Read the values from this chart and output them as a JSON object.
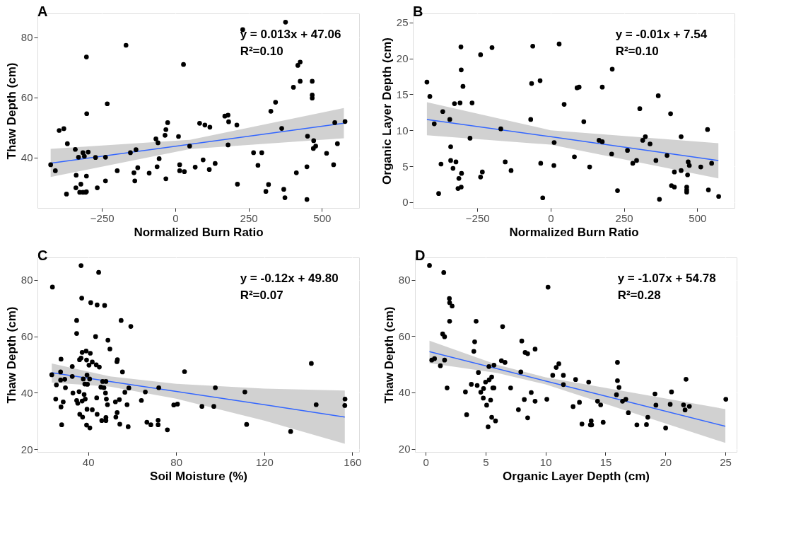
{
  "chart_data": [
    {
      "type": "scatter",
      "title": "A",
      "xlabel": "Normalized Burn Ratio",
      "ylabel": "Thaw Depth (cm)",
      "xlim": [
        -470,
        627
      ],
      "ylim": [
        23.2,
        88
      ],
      "xticks": [
        -250,
        0,
        250,
        500
      ],
      "yticks": [
        40,
        60,
        80
      ],
      "grid": true,
      "annotations": [
        "y = 0.013x + 47.06",
        "R²=0.10"
      ],
      "series": [
        {
          "marker": "circle",
          "color": "#000000",
          "x": [
            -425,
            -409,
            -396,
            -380,
            -371,
            -368,
            -341,
            -338,
            -339,
            -330,
            -322,
            -326,
            -315,
            -315,
            -310,
            -306,
            -303,
            -303,
            -302,
            -303,
            -297,
            -272,
            -266,
            -238,
            -238,
            -232,
            -198,
            -168,
            -153,
            -141,
            -138,
            -134,
            -128,
            -89,
            -66,
            -62,
            -59,
            -55,
            -35,
            -32,
            -32,
            -26,
            11,
            15,
            15,
            28,
            31,
            49,
            68,
            83,
            95,
            101,
            116,
            118,
            136,
            169,
            180,
            182,
            180,
            210,
            212,
            230,
            267,
            282,
            295,
            309,
            318,
            326,
            342,
            363,
            370,
            374,
            376,
            403,
            413,
            418,
            426,
            426,
            449,
            449,
            451,
            467,
            467,
            467,
            472,
            471,
            479,
            516,
            540,
            544,
            553,
            579
          ],
          "values": [
            37.6,
            35.6,
            49.0,
            49.6,
            27.8,
            44.6,
            42.7,
            34.1,
            29.9,
            40.1,
            31.1,
            28.4,
            41.6,
            28.4,
            40.4,
            28.4,
            28.6,
            73.5,
            54.6,
            33.8,
            41.8,
            40.0,
            29.9,
            40.1,
            32.2,
            57.9,
            35.6,
            77.4,
            41.6,
            34.9,
            32.2,
            42.6,
            36.6,
            34.8,
            46.2,
            36.9,
            44.9,
            39.6,
            47.4,
            49.3,
            32.9,
            51.6,
            47.0,
            37.6,
            35.6,
            71.0,
            35.3,
            43.8,
            36.8,
            51.4,
            39.2,
            50.8,
            36.0,
            50.1,
            38.0,
            53.8,
            54.1,
            51.9,
            44.2,
            50.8,
            31.1,
            82.6,
            41.6,
            37.4,
            41.6,
            28.7,
            31.0,
            55.4,
            58.4,
            49.7,
            29.4,
            26.6,
            85.1,
            63.4,
            34.9,
            70.7,
            71.8,
            65.4,
            36.9,
            26.0,
            47.1,
            65.4,
            60.8,
            59.8,
            45.6,
            43.0,
            43.8,
            41.4,
            37.6,
            51.6,
            44.6,
            52.0
          ]
        },
        {
          "type": "line",
          "color": "#3366ff",
          "x": [
            -425,
            50,
            575
          ],
          "values": [
            38.1,
            44.4,
            51.4
          ],
          "lower": [
            33.5,
            42.8,
            46.4
          ],
          "upper": [
            42.9,
            45.9,
            56.5
          ]
        }
      ]
    },
    {
      "type": "scatter",
      "title": "B",
      "xlabel": "Normalized Burn Ratio",
      "ylabel": "Organic Layer Depth (cm)",
      "xlim": [
        -470,
        627
      ],
      "ylim": [
        -0.8,
        26.25
      ],
      "xticks": [
        -250,
        0,
        250,
        500
      ],
      "yticks": [
        0,
        5,
        10,
        15,
        20,
        25
      ],
      "grid": true,
      "annotations": [
        "y = -0.01x + 7.54",
        "R²=0.10"
      ],
      "series": [
        {
          "marker": "circle",
          "color": "#000000",
          "x": [
            -422,
            -412,
            -397,
            -382,
            -374,
            -368,
            -344,
            -341,
            -341,
            -333,
            -328,
            -323,
            -316,
            -313,
            -309,
            -306,
            -305,
            -305,
            -304,
            -299,
            -275,
            -268,
            -239,
            -239,
            -233,
            -200,
            -170,
            -155,
            -135,
            -68,
            -65,
            -61,
            -36,
            -34,
            -27,
            11,
            12,
            29,
            46,
            81,
            90,
            97,
            113,
            133,
            165,
            176,
            176,
            208,
            210,
            228,
            262,
            280,
            293,
            304,
            314,
            323,
            339,
            359,
            367,
            371,
            397,
            409,
            412,
            422,
            422,
            445,
            445,
            464,
            464,
            464,
            467,
            469,
            473,
            512,
            535,
            538,
            549,
            573
          ],
          "values": [
            16.7,
            14.7,
            10.9,
            1.2,
            5.3,
            12.6,
            11.5,
            7.7,
            5.8,
            4.7,
            13.7,
            5.6,
            1.9,
            3.3,
            13.8,
            21.6,
            18.4,
            2.1,
            4.0,
            16.1,
            8.9,
            13.8,
            20.5,
            3.5,
            4.2,
            21.5,
            10.2,
            5.6,
            4.4,
            11.5,
            16.5,
            21.7,
            16.9,
            5.4,
            0.6,
            5.1,
            8.3,
            22.0,
            13.6,
            6.3,
            15.9,
            16.0,
            11.2,
            4.9,
            8.6,
            16.0,
            8.4,
            6.7,
            18.5,
            1.6,
            7.2,
            5.4,
            5.8,
            13.0,
            8.6,
            9.1,
            8.1,
            5.8,
            14.8,
            0.4,
            6.5,
            12.3,
            2.3,
            4.2,
            2.1,
            9.1,
            4.4,
            2.1,
            1.7,
            1.4,
            3.8,
            5.6,
            5.1,
            4.9,
            10.1,
            1.7,
            5.4,
            0.8
          ]
        },
        {
          "type": "line",
          "color": "#3366ff",
          "x": [
            -422,
            0,
            572
          ],
          "values": [
            11.5,
            9.1,
            5.8
          ],
          "lower": [
            9.3,
            8.0,
            3.3
          ],
          "upper": [
            13.9,
            10.0,
            8.2
          ]
        }
      ]
    },
    {
      "type": "scatter",
      "title": "C",
      "xlabel": "Soil Moisture (%)",
      "ylabel": "Thaw Depth (cm)",
      "xlim": [
        17,
        163.1
      ],
      "ylim": [
        19.1,
        87.9
      ],
      "xticks": [
        40,
        80,
        120,
        160
      ],
      "yticks": [
        20,
        40,
        60,
        80
      ],
      "grid": true,
      "annotations": [
        "y = -0.12x + 49.80",
        "R²=0.07"
      ],
      "series": [
        {
          "marker": "circle",
          "color": "#000000",
          "x": [
            23.5,
            23.8,
            25.6,
            25.3,
            27.5,
            27.7,
            27.5,
            27.7,
            28.0,
            28.7,
            29.4,
            29.7,
            32.8,
            32.8,
            33.1,
            34.8,
            34.8,
            34.8,
            35.3,
            35.9,
            36.2,
            36.1,
            36.8,
            36.8,
            37.1,
            37.3,
            37.3,
            37.5,
            37.8,
            38.2,
            38.5,
            38.7,
            39.1,
            39.3,
            39.5,
            39.5,
            39.3,
            39.7,
            40.4,
            40.7,
            40.8,
            41.0,
            41.2,
            41.9,
            41.9,
            43.4,
            43.7,
            43.9,
            44.1,
            44.1,
            44.8,
            45.1,
            45.8,
            46.2,
            46.6,
            47.2,
            47.5,
            47.9,
            48.1,
            48.1,
            48.1,
            48.3,
            48.8,
            49.0,
            49.9,
            52.4,
            52.6,
            53.1,
            53.3,
            53.2,
            54.2,
            54.4,
            55.0,
            55.6,
            56.7,
            57.7,
            58.2,
            58.5,
            59.4,
            64.2,
            66.0,
            66.7,
            68.5,
            71.8,
            71.8,
            72.1,
            76.0,
            78.9,
            80.6,
            83.8,
            91.7,
            97.1,
            97.8,
            111.2,
            112.0,
            132.0,
            141.4,
            143.6,
            156.6,
            156.7
          ],
          "values": [
            46.4,
            77.4,
            42.8,
            37.8,
            47.4,
            51.9,
            44.5,
            35.0,
            28.7,
            36.8,
            44.8,
            41.8,
            49.3,
            45.8,
            39.9,
            65.6,
            61.0,
            37.3,
            36.3,
            40.4,
            32.4,
            51.7,
            85.0,
            52.3,
            73.5,
            54.3,
            37.1,
            31.4,
            44.9,
            39.4,
            43.1,
            37.8,
            54.8,
            51.6,
            46.3,
            34.2,
            28.6,
            43.0,
            49.8,
            44.9,
            27.6,
            54.0,
            71.9,
            50.9,
            34.0,
            59.9,
            49.9,
            38.2,
            32.4,
            71.1,
            82.6,
            49.1,
            42.0,
            30.2,
            44.0,
            41.8,
            70.9,
            39.9,
            44.0,
            31.3,
            30.2,
            37.8,
            35.8,
            58.6,
            55.5,
            36.8,
            31.4,
            51.0,
            51.7,
            33.0,
            37.6,
            28.9,
            65.6,
            47.4,
            40.2,
            35.8,
            28.0,
            41.7,
            63.5,
            37.3,
            40.3,
            29.6,
            28.7,
            30.3,
            28.7,
            41.8,
            26.9,
            35.7,
            36.0,
            47.5,
            35.2,
            35.2,
            41.8,
            40.3,
            28.8,
            26.3,
            50.4,
            35.8,
            35.5,
            37.8
          ]
        },
        {
          "type": "line",
          "color": "#3366ff",
          "x": [
            23.5,
            50,
            80,
            120,
            156.6
          ],
          "values": [
            47.1,
            44.0,
            40.5,
            35.8,
            31.4
          ],
          "lower": [
            43.6,
            42.2,
            37.9,
            30.2,
            22.0
          ],
          "upper": [
            50.4,
            45.8,
            43.2,
            41.5,
            40.8
          ]
        }
      ]
    },
    {
      "type": "scatter",
      "title": "D",
      "xlabel": "Organic Layer Depth (cm)",
      "ylabel": "Thaw Depth (cm)",
      "xlim": [
        -0.89,
        25.94
      ],
      "ylim": [
        18.9,
        87.97
      ],
      "xticks": [
        0,
        5,
        10,
        15,
        20,
        25
      ],
      "yticks": [
        20,
        40,
        60,
        80
      ],
      "grid": true,
      "annotations": [
        "y = -1.07x + 54.78",
        "R²=0.28"
      ],
      "series": [
        {
          "marker": "circle",
          "color": "#000000",
          "x": [
            0.32,
            0.51,
            0.74,
            1.23,
            1.42,
            1.51,
            1.58,
            1.58,
            1.79,
            1.98,
            2.0,
            2.0,
            2.21,
            3.32,
            3.42,
            3.81,
            4.02,
            4.09,
            4.21,
            4.3,
            4.4,
            4.6,
            4.81,
            4.83,
            5.0,
            5.09,
            5.21,
            5.28,
            5.3,
            5.42,
            5.51,
            5.51,
            5.6,
            5.7,
            5.7,
            5.83,
            6.32,
            6.42,
            6.62,
            7.09,
            7.74,
            7.94,
            8.02,
            8.23,
            8.3,
            8.51,
            8.51,
            8.81,
            9.13,
            9.13,
            10.11,
            10.21,
            10.6,
            10.89,
            11.11,
            11.49,
            11.49,
            12.3,
            12.51,
            12.83,
            13.04,
            13.6,
            13.74,
            13.81,
            13.85,
            14.34,
            14.6,
            14.81,
            15.92,
            16.0,
            16.0,
            16.13,
            16.42,
            16.7,
            16.91,
            17.62,
            18.42,
            18.53,
            19.13,
            19.21,
            20.02,
            20.4,
            20.51,
            21.51,
            21.64,
            21.72,
            22.0,
            25.04
          ],
          "values": [
            85.1,
            51.5,
            52.0,
            49.5,
            60.8,
            82.6,
            59.8,
            51.5,
            41.6,
            73.4,
            71.9,
            65.3,
            70.7,
            40.2,
            32.1,
            42.9,
            54.6,
            58.0,
            65.3,
            42.5,
            47.1,
            40.1,
            38.0,
            41.4,
            43.7,
            35.5,
            27.8,
            49.2,
            44.5,
            37.3,
            45.5,
            31.2,
            41.6,
            41.6,
            49.7,
            29.9,
            51.3,
            63.4,
            50.7,
            41.6,
            33.9,
            47.3,
            58.3,
            37.5,
            54.2,
            53.8,
            31.0,
            40.0,
            55.4,
            36.9,
            37.6,
            77.4,
            46.1,
            48.9,
            50.2,
            46.1,
            42.8,
            35.0,
            44.6,
            36.5,
            28.8,
            43.7,
            28.5,
            29.9,
            28.5,
            36.9,
            35.6,
            29.4,
            39.2,
            50.7,
            44.2,
            41.8,
            36.9,
            37.6,
            32.8,
            28.5,
            28.6,
            31.2,
            39.5,
            35.5,
            27.4,
            35.8,
            40.2,
            35.6,
            33.8,
            44.7,
            35.1,
            37.6
          ]
        },
        {
          "type": "line",
          "color": "#3366ff",
          "x": [
            0.32,
            6,
            10,
            25
          ],
          "values": [
            54.5,
            48.4,
            44.1,
            28.0
          ],
          "lower": [
            50.4,
            46.9,
            42.9,
            22.1
          ],
          "upper": [
            58.4,
            49.8,
            45.4,
            34.1
          ]
        }
      ]
    }
  ]
}
